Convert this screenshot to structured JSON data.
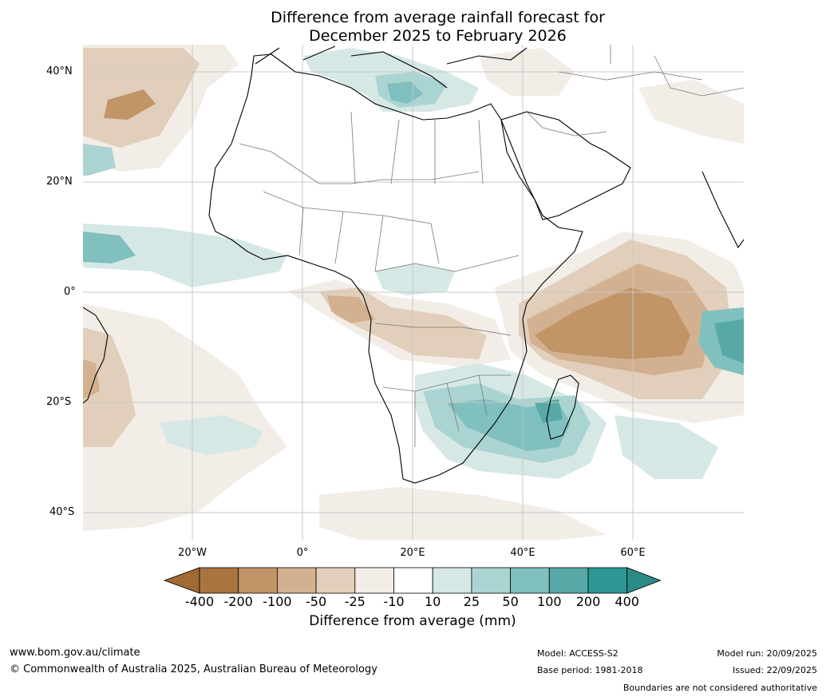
{
  "title": {
    "line1": "Difference from average rainfall forecast for",
    "line2": "December 2025 to February 2026"
  },
  "map": {
    "lat_labels": [
      "40°N",
      "20°N",
      "0°",
      "20°S",
      "40°S"
    ],
    "lon_labels": [
      "20°W",
      "0°",
      "20°E",
      "40°E",
      "60°E"
    ]
  },
  "colorbar": {
    "ticks": [
      "-400",
      "-200",
      "-100",
      "-50",
      "-25",
      "-10",
      "10",
      "25",
      "50",
      "100",
      "200",
      "400"
    ],
    "colors": [
      "#a97440",
      "#c29568",
      "#d3b190",
      "#e2cfbb",
      "#f2ede7",
      "#ffffff",
      "#d5e8e6",
      "#aad4d2",
      "#80c0be",
      "#56a9a7",
      "#2e9793"
    ],
    "end_low_color": "#a06a35",
    "end_high_color": "#2a8a86",
    "label": "Difference from average (mm)"
  },
  "footer": {
    "website": "www.bom.gov.au/climate",
    "copyright": "© Commonwealth of Australia 2025, Australian Bureau of Meteorology",
    "model": "Model: ACCESS-S2",
    "base_period": "Base period: 1981-2018",
    "model_run": "Model run: 20/09/2025",
    "issued": "Issued: 22/09/2025",
    "boundaries": "Boundaries are not considered authoritative"
  }
}
